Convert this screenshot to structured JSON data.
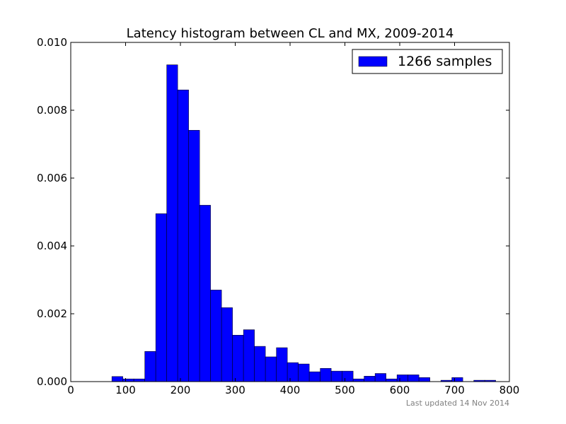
{
  "chart_data": {
    "type": "bar",
    "title": "Latency histogram between CL and MX, 2009-2014",
    "xlabel": "",
    "ylabel": "",
    "xlim": [
      0,
      800
    ],
    "ylim": [
      0,
      0.01
    ],
    "xticks": [
      0,
      100,
      200,
      300,
      400,
      500,
      600,
      700,
      800
    ],
    "xtick_labels": [
      "0",
      "100",
      "200",
      "300",
      "400",
      "500",
      "600",
      "700",
      "800"
    ],
    "yticks": [
      0,
      0.002,
      0.004,
      0.006,
      0.008,
      0.01
    ],
    "ytick_labels": [
      "0.000",
      "0.002",
      "0.004",
      "0.006",
      "0.008",
      "0.010"
    ],
    "grid": false,
    "legend_position": "top-right",
    "bar_color": "#0000ff",
    "series": [
      {
        "name": "1266 samples",
        "bins": [
          [
            75,
            95,
            0.00015
          ],
          [
            95,
            115,
            8e-05
          ],
          [
            115,
            135,
            8e-05
          ],
          [
            135,
            155,
            0.00089
          ],
          [
            155,
            175,
            0.00495
          ],
          [
            175,
            195,
            0.00934
          ],
          [
            195,
            215,
            0.0086
          ],
          [
            215,
            235,
            0.00741
          ],
          [
            235,
            255,
            0.0052
          ],
          [
            255,
            275,
            0.0027
          ],
          [
            275,
            295,
            0.00218
          ],
          [
            295,
            315,
            0.00137
          ],
          [
            315,
            335,
            0.00153
          ],
          [
            335,
            355,
            0.00104
          ],
          [
            355,
            375,
            0.00073
          ],
          [
            375,
            395,
            0.001
          ],
          [
            395,
            415,
            0.00056
          ],
          [
            415,
            435,
            0.00052
          ],
          [
            435,
            455,
            0.00029
          ],
          [
            455,
            475,
            0.00039
          ],
          [
            475,
            495,
            0.00031
          ],
          [
            495,
            515,
            0.00031
          ],
          [
            515,
            535,
            8e-05
          ],
          [
            535,
            555,
            0.00016
          ],
          [
            555,
            575,
            0.00024
          ],
          [
            575,
            595,
            8e-05
          ],
          [
            595,
            615,
            0.0002
          ],
          [
            615,
            635,
            0.0002
          ],
          [
            635,
            655,
            0.00012
          ],
          [
            675,
            695,
            4e-05
          ],
          [
            695,
            715,
            0.00012
          ],
          [
            735,
            755,
            4e-05
          ],
          [
            755,
            775,
            4e-05
          ]
        ]
      }
    ]
  },
  "footnote": "Last updated 14 Nov 2014"
}
